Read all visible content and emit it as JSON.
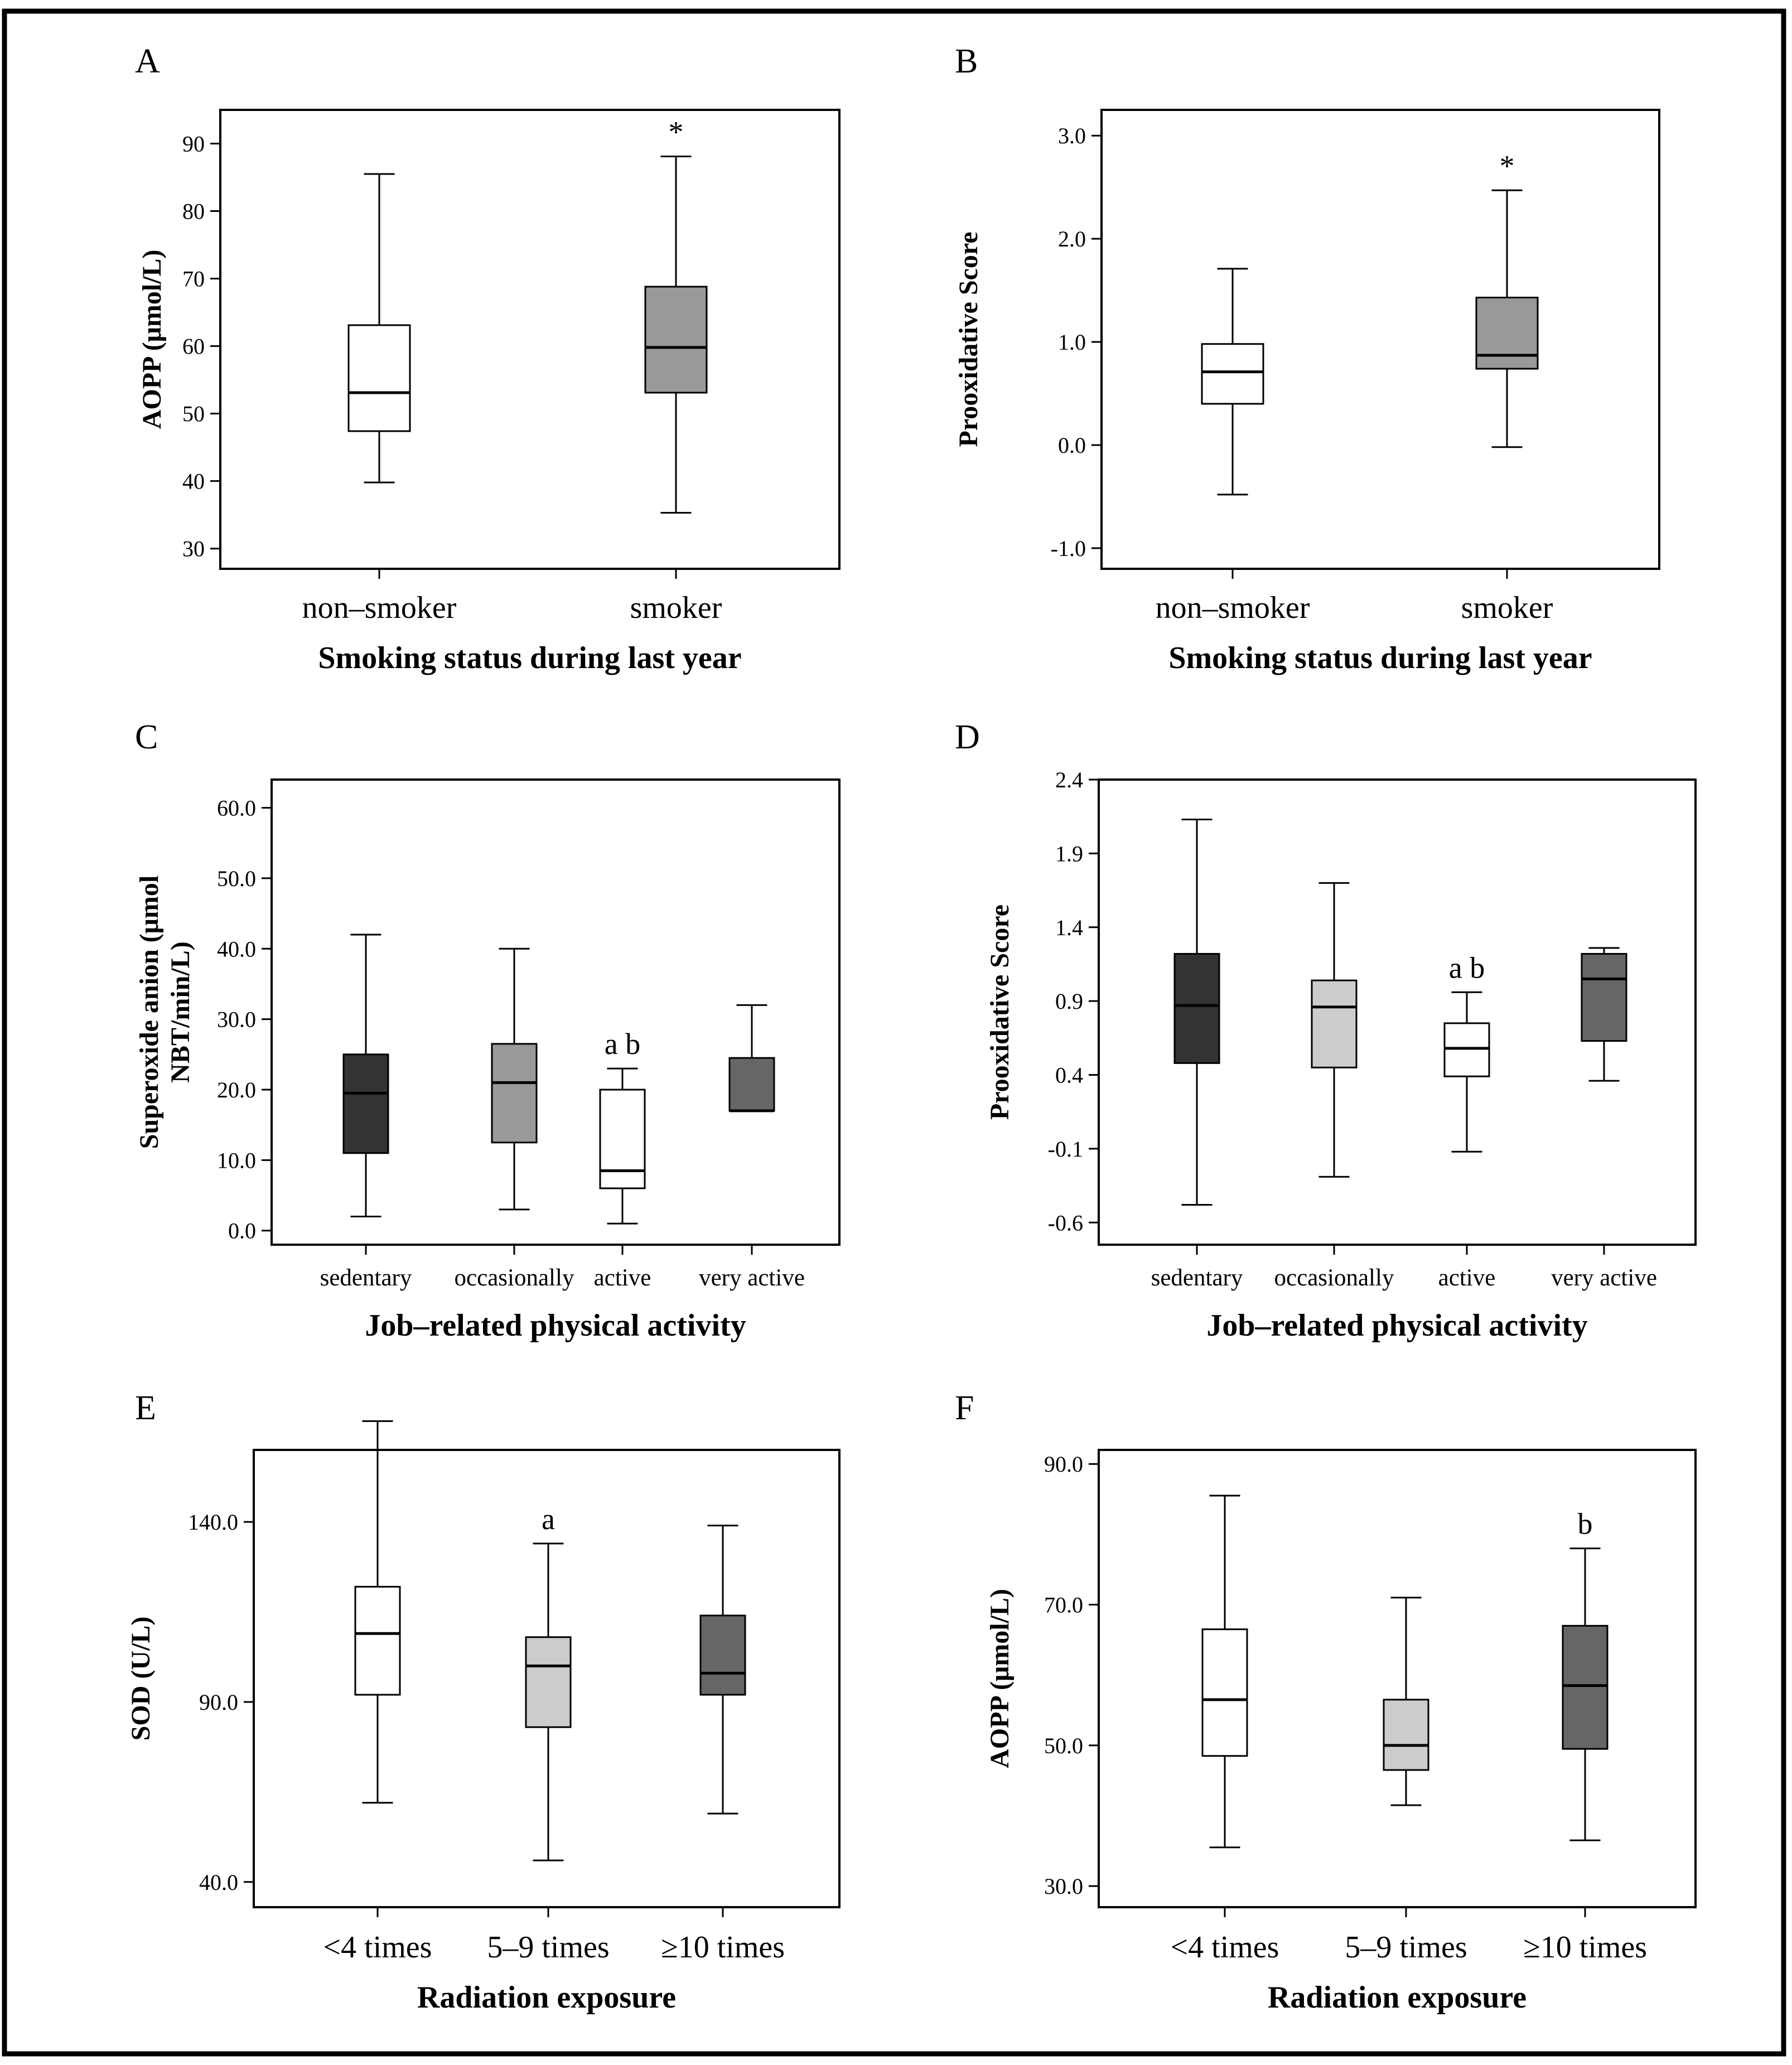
{
  "figure": {
    "border_color": "#000000"
  },
  "chart_data": [
    {
      "panel": "A",
      "type": "box",
      "xlabel": "Smoking status during last year",
      "ylabel": "AOPP (μmol/L)",
      "ylim": [
        27,
        95
      ],
      "yticks": [
        30,
        40,
        50,
        60,
        70,
        80,
        90
      ],
      "ytick_labels": [
        "30",
        "40",
        "50",
        "60",
        "70",
        "80",
        "90"
      ],
      "categories": [
        "non–smoker",
        "smoker"
      ],
      "boxes": [
        {
          "min": 39.8,
          "q1": 47.4,
          "median": 53.1,
          "q3": 63.1,
          "max": 85.5,
          "color": "#ffffff"
        },
        {
          "min": 35.3,
          "q1": 53.1,
          "median": 59.8,
          "q3": 68.8,
          "max": 88.1,
          "color": "#999999"
        }
      ],
      "annotations": [
        {
          "category_index": 1,
          "text": "*"
        }
      ],
      "category_label_style": "large"
    },
    {
      "panel": "B",
      "type": "box",
      "xlabel": "Smoking status during last year",
      "ylabel": "Prooxidative Score",
      "ylim": [
        -1.2,
        3.25
      ],
      "yticks": [
        -1.0,
        0.0,
        1.0,
        2.0,
        3.0
      ],
      "ytick_labels": [
        "-1.0",
        "0.0",
        "1.0",
        "2.0",
        "3.0"
      ],
      "categories": [
        "non–smoker",
        "smoker"
      ],
      "boxes": [
        {
          "min": -0.48,
          "q1": 0.4,
          "median": 0.71,
          "q3": 0.98,
          "max": 1.71,
          "color": "#ffffff"
        },
        {
          "min": -0.02,
          "q1": 0.74,
          "median": 0.87,
          "q3": 1.43,
          "max": 2.47,
          "color": "#999999"
        }
      ],
      "annotations": [
        {
          "category_index": 1,
          "text": "*"
        }
      ],
      "category_label_style": "large"
    },
    {
      "panel": "C",
      "type": "box",
      "xlabel": "Job–related physical activity",
      "ylabel_lines": [
        "Superoxide anion (μmol",
        "NBT/min/L)"
      ],
      "ylim": [
        -2,
        64
      ],
      "yticks": [
        0,
        10,
        20,
        30,
        40,
        50,
        60
      ],
      "ytick_labels": [
        "0.0",
        "10.0",
        "20.0",
        "30.0",
        "40.0",
        "50.0",
        "60.0"
      ],
      "categories": [
        "sedentary",
        "occasionally",
        "active",
        "very active"
      ],
      "boxes": [
        {
          "min": 2,
          "q1": 11,
          "median": 19.5,
          "q3": 25,
          "max": 42,
          "color": "#333333"
        },
        {
          "min": 3,
          "q1": 12.5,
          "median": 21,
          "q3": 26.5,
          "max": 40,
          "color": "#999999"
        },
        {
          "min": 1,
          "q1": 6,
          "median": 8.5,
          "q3": 20,
          "max": 23,
          "color": "#ffffff"
        },
        {
          "min": 17,
          "q1": 17,
          "median": 17,
          "q3": 24.5,
          "max": 32,
          "color": "#666666"
        }
      ],
      "annotations": [
        {
          "category_index": 2,
          "text": "a b"
        }
      ],
      "category_label_style": "small"
    },
    {
      "panel": "D",
      "type": "box",
      "xlabel": "Job–related physical activity",
      "ylabel": "Prooxidative Score",
      "ylim": [
        -0.75,
        2.4
      ],
      "yticks": [
        -0.6,
        -0.1,
        0.4,
        0.9,
        1.4,
        1.9,
        2.4
      ],
      "ytick_labels": [
        "-0.6",
        "-0.1",
        "0.4",
        "0.9",
        "1.4",
        "1.9",
        "2.4"
      ],
      "categories": [
        "sedentary",
        "occasionally",
        "active",
        "very active"
      ],
      "boxes": [
        {
          "min": -0.48,
          "q1": 0.48,
          "median": 0.87,
          "q3": 1.22,
          "max": 2.13,
          "color": "#333333"
        },
        {
          "min": -0.29,
          "q1": 0.45,
          "median": 0.86,
          "q3": 1.04,
          "max": 1.7,
          "color": "#cccccc"
        },
        {
          "min": -0.12,
          "q1": 0.39,
          "median": 0.58,
          "q3": 0.75,
          "max": 0.96,
          "color": "#ffffff"
        },
        {
          "min": 0.36,
          "q1": 0.63,
          "median": 1.05,
          "q3": 1.22,
          "max": 1.26,
          "color": "#666666"
        }
      ],
      "annotations": [
        {
          "category_index": 2,
          "text": "a b"
        }
      ],
      "category_label_style": "small"
    },
    {
      "panel": "E",
      "type": "box",
      "xlabel": "Radiation exposure",
      "ylabel": "SOD (U/L)",
      "ylim": [
        33,
        160
      ],
      "yticks": [
        40,
        90,
        140
      ],
      "ytick_labels": [
        "40.0",
        "90.0",
        "140.0"
      ],
      "categories": [
        "<4 times",
        "5–9 times",
        "≥10 times"
      ],
      "boxes": [
        {
          "min": 62,
          "q1": 92,
          "median": 109,
          "q3": 122,
          "max": 168,
          "color": "#ffffff"
        },
        {
          "min": 46,
          "q1": 83,
          "median": 100,
          "q3": 108,
          "max": 134,
          "color": "#cccccc"
        },
        {
          "min": 59,
          "q1": 92,
          "median": 98,
          "q3": 114,
          "max": 139,
          "color": "#666666"
        }
      ],
      "annotations": [
        {
          "category_index": 1,
          "text": "a"
        }
      ],
      "category_label_style": "large"
    },
    {
      "panel": "F",
      "type": "box",
      "xlabel": "Radiation exposure",
      "ylabel": "AOPP (μmol/L)",
      "ylim": [
        27,
        92
      ],
      "yticks": [
        30,
        50,
        70,
        90
      ],
      "ytick_labels": [
        "30.0",
        "50.0",
        "70.0",
        "90.0"
      ],
      "categories": [
        "<4 times",
        "5–9 times",
        "≥10 times"
      ],
      "boxes": [
        {
          "min": 35.5,
          "q1": 48.5,
          "median": 56.5,
          "q3": 66.5,
          "max": 85.5,
          "color": "#ffffff"
        },
        {
          "min": 41.5,
          "q1": 46.5,
          "median": 50,
          "q3": 56.5,
          "max": 71,
          "color": "#cccccc"
        },
        {
          "min": 36.5,
          "q1": 49.5,
          "median": 58.5,
          "q3": 67,
          "max": 78,
          "color": "#666666"
        }
      ],
      "annotations": [
        {
          "category_index": 2,
          "text": "b"
        }
      ],
      "category_label_style": "large"
    }
  ]
}
